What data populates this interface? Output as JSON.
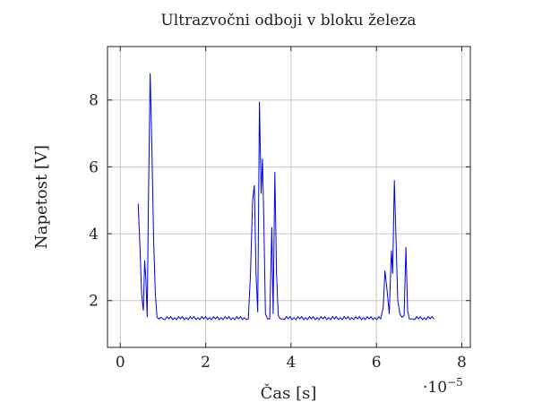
{
  "chart_data": {
    "type": "line",
    "title": "Ultrazvočni odboji v bloku železa",
    "xlabel": "Čas [s]",
    "ylabel": "Napetost [V]",
    "x_exponent_base": "·10",
    "x_exponent_power": "−5",
    "xlim": [
      -0.3,
      8.2
    ],
    "ylim": [
      0.6,
      9.6
    ],
    "xticks": [
      0,
      2,
      4,
      6,
      8
    ],
    "yticks": [
      2,
      4,
      6,
      8
    ],
    "xtick_labels": [
      "0",
      "2",
      "4",
      "6",
      "8"
    ],
    "ytick_labels": [
      "2",
      "4",
      "6",
      "8"
    ],
    "grid": true,
    "line_color": "#0000ee",
    "series": [
      {
        "x": [
          0.42,
          0.46,
          0.5,
          0.54,
          0.57,
          0.6,
          0.63,
          0.66,
          0.7,
          0.74,
          0.78,
          0.82,
          0.86,
          0.9,
          0.95,
          1.0,
          3.0,
          3.05,
          3.1,
          3.14,
          3.18,
          3.22,
          3.26,
          3.3,
          3.33,
          3.36,
          3.4,
          3.45,
          3.5,
          3.55,
          3.58,
          3.62,
          3.66,
          3.7,
          3.75,
          3.8,
          6.1,
          6.16,
          6.2,
          6.25,
          6.3,
          6.35,
          6.38,
          6.42,
          6.46,
          6.5,
          6.55,
          6.6,
          6.65,
          6.69,
          6.73,
          6.77,
          6.85,
          7.35
        ],
        "y": [
          4.9,
          3.6,
          2.2,
          1.7,
          3.2,
          2.6,
          1.5,
          5.0,
          8.8,
          6.5,
          3.8,
          2.2,
          1.5,
          1.45,
          1.5,
          1.45,
          1.45,
          2.8,
          5.0,
          5.45,
          2.8,
          1.65,
          7.95,
          5.2,
          6.25,
          4.5,
          1.6,
          1.45,
          1.45,
          4.2,
          1.6,
          5.85,
          2.8,
          1.55,
          1.45,
          1.45,
          1.45,
          1.8,
          2.9,
          2.3,
          1.6,
          3.5,
          2.8,
          5.6,
          3.8,
          2.0,
          1.6,
          1.5,
          1.55,
          3.6,
          1.7,
          1.45,
          1.45,
          1.45
        ]
      }
    ]
  }
}
